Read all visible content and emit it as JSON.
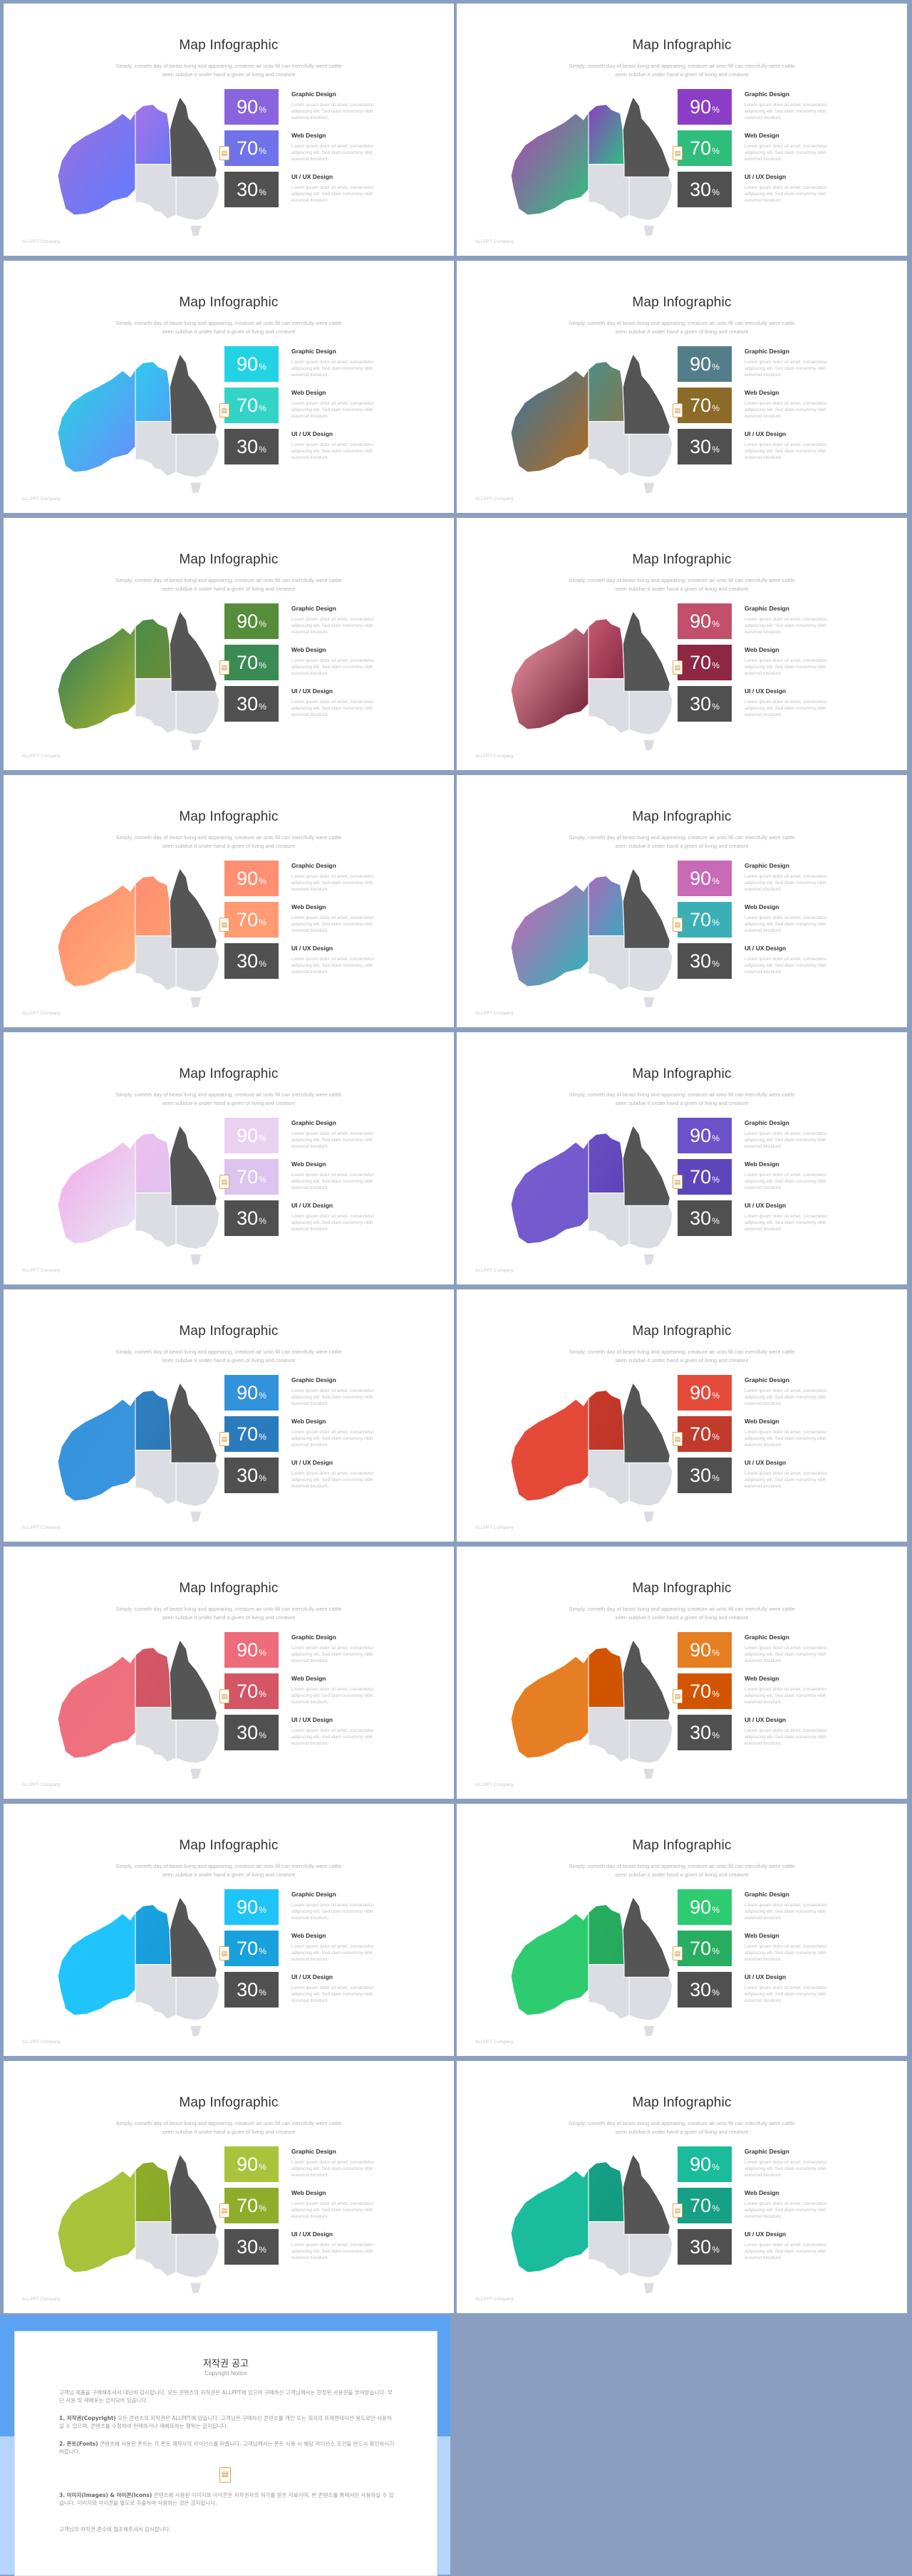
{
  "slide_common": {
    "title": "Map Infographic",
    "subtitle": "Simply, cometh day of beast living and appearing, creature air unto fill can mercifully were cattle seen subdue it under hand a given of living and creature",
    "footer": "ALLPPT Company",
    "badge_icon": "document-icon",
    "items": [
      {
        "value": "90",
        "unit": "%",
        "heading": "Graphic Design",
        "text": "Lorem ipsum dolor sit amet, consectetur adipiscing elit. Sed diam nonummy nibh euismod tincidunt."
      },
      {
        "value": "70",
        "unit": "%",
        "heading": "Web Design",
        "text": "Lorem ipsum dolor sit amet, consectetur adipiscing elit. Sed diam nonummy nibh euismod tincidunt."
      },
      {
        "value": "30",
        "unit": "%",
        "heading": "UI / UX Design",
        "text": "Lorem ipsum dolor sit amet, consectetur adipiscing elit. Sed diam nonummy nibh euismod tincidunt."
      }
    ]
  },
  "slides": [
    {
      "wa": "#9b6fe0",
      "wb": "#5f7cff",
      "ca": "#a872e8",
      "cb": "#6b78f2",
      "b1": "#8a64df",
      "b2": "#6f72e9",
      "b3": "#505050"
    },
    {
      "wa": "#b43fb5",
      "wb": "#2cc37b",
      "ca": "#8e3fbf",
      "cb": "#2dbd85",
      "b1": "#8b3ec5",
      "b2": "#2ebd7a",
      "b3": "#505050"
    },
    {
      "wa": "#22d7e0",
      "wb": "#6a8cff",
      "ca": "#31c9ef",
      "cb": "#4ba5f5",
      "b1": "#23d3e4",
      "b2": "#33d4c6",
      "b3": "#505050"
    },
    {
      "wa": "#3a77a0",
      "wb": "#b26a1e",
      "ca": "#4d8e88",
      "cb": "#7e7a52",
      "b1": "#547d8a",
      "b2": "#8c6a28",
      "b3": "#505050"
    },
    {
      "wa": "#2f7a5a",
      "wb": "#a9b42c",
      "ca": "#4a8d46",
      "cb": "#6b8b3a",
      "b1": "#568d3a",
      "b2": "#3a8a54",
      "b3": "#505050"
    },
    {
      "wa": "#f19aa6",
      "wb": "#6a1c34",
      "ca": "#c45a70",
      "cb": "#8a2a47",
      "b1": "#c2506a",
      "b2": "#8e2744",
      "b3": "#505050"
    },
    {
      "wa": "#ff8a6c",
      "wb": "#ffb07a",
      "ca": "#ff8d72",
      "cb": "#ff9c70",
      "b1": "#ff8f72",
      "b2": "#ff9a72",
      "b3": "#505050"
    },
    {
      "wa": "#d25fb5",
      "wb": "#2bb8b8",
      "ca": "#a86ab9",
      "cb": "#3fa6c0",
      "b1": "#c86ab6",
      "b2": "#3ab0b6",
      "b3": "#505050"
    },
    {
      "wa": "#f4a7ea",
      "wb": "#e5e7f4",
      "ca": "#eebff1",
      "cb": "#e1c2ef",
      "b1": "#ead1f2",
      "b2": "#dcc4ef",
      "b3": "#505050"
    },
    {
      "wa": "#7a5cd0",
      "wb": "#6f59cc",
      "ca": "#6a4fc2",
      "cb": "#5c44b8",
      "b1": "#6b52c8",
      "b2": "#5d46bc",
      "b3": "#505050"
    },
    {
      "wa": "#3593db",
      "wb": "#3a95de",
      "ca": "#2f7fc0",
      "cb": "#2c79b8",
      "b1": "#3392dc",
      "b2": "#2a7bbd",
      "b3": "#505050"
    },
    {
      "wa": "#e64a3a",
      "wb": "#e44938",
      "ca": "#c63a2c",
      "cb": "#bd3426",
      "b1": "#e44b3b",
      "b2": "#c23a2c",
      "b3": "#505050"
    },
    {
      "wa": "#ee6f7d",
      "wb": "#ef727f",
      "ca": "#d55865",
      "cb": "#cf5562",
      "b1": "#ee6b7a",
      "b2": "#d45564",
      "b3": "#505050"
    },
    {
      "wa": "#e67e22",
      "wb": "#e67f24",
      "ca": "#d35400",
      "cb": "#cf5300",
      "b1": "#e67e22",
      "b2": "#d35400",
      "b3": "#505050"
    },
    {
      "wa": "#1fc4ff",
      "wb": "#22c3fb",
      "ca": "#1aa2e0",
      "cb": "#189cd9",
      "b1": "#1fc4f9",
      "b2": "#19a1dd",
      "b3": "#505050"
    },
    {
      "wa": "#2ecc71",
      "wb": "#2ecb70",
      "ca": "#27ae60",
      "cb": "#25a85c",
      "b1": "#2ecc71",
      "b2": "#27ae60",
      "b3": "#505050"
    },
    {
      "wa": "#a9c43a",
      "wb": "#a7c239",
      "ca": "#8fad2a",
      "cb": "#8aa828",
      "b1": "#a9c43a",
      "b2": "#8fad2a",
      "b3": "#505050"
    },
    {
      "wa": "#1abc9c",
      "wb": "#1bbb9b",
      "ca": "#16a085",
      "cb": "#149b80",
      "b1": "#1abc9c",
      "b2": "#16a085",
      "b3": "#505050"
    }
  ],
  "notice": {
    "title": "저작권 공고",
    "subtitle": "Copyright Notice",
    "icon": "document-icon",
    "paragraphs": [
      {
        "head": "",
        "text": "고객님 제품을 구매해주셔서 대단히 감사합니다. 모든 콘텐츠의 저작권은 ALLPPT에 있으며 구매하신 고객님께서는 한정된 사용권을 부여받습니다. 무단 사용 및 재배포는 금지되어 있습니다."
      },
      {
        "head": "1. 저작권(Copyright)",
        "text": "모든 콘텐츠의 저작권은 ALLPPT에 있습니다. 고객님은 구매하신 콘텐츠를 개인 또는 회사의 프레젠테이션 용도로만 사용하실 수 있으며, 콘텐츠를 수정하여 판매하거나 재배포하는 행위는 금지됩니다."
      },
      {
        "head": "2. 폰트(Fonts)",
        "text": "콘텐츠에 사용된 폰트는 각 폰트 제작사의 라이선스를 따릅니다. 고객님께서는 폰트 사용 시 해당 라이선스 조건을 반드시 확인하시기 바랍니다."
      },
      {
        "head": "3. 이미지(Images) & 아이콘(Icons)",
        "text": "콘텐츠에 사용된 이미지와 아이콘은 저작권자의 허가를 받은 자료이며, 본 콘텐츠를 통해서만 사용하실 수 있습니다. 이미지와 아이콘을 별도로 추출하여 사용하는 것은 금지됩니다."
      },
      {
        "head": "",
        "text": "고객님의 저작권 준수에 협조해주셔서 감사합니다."
      }
    ]
  }
}
